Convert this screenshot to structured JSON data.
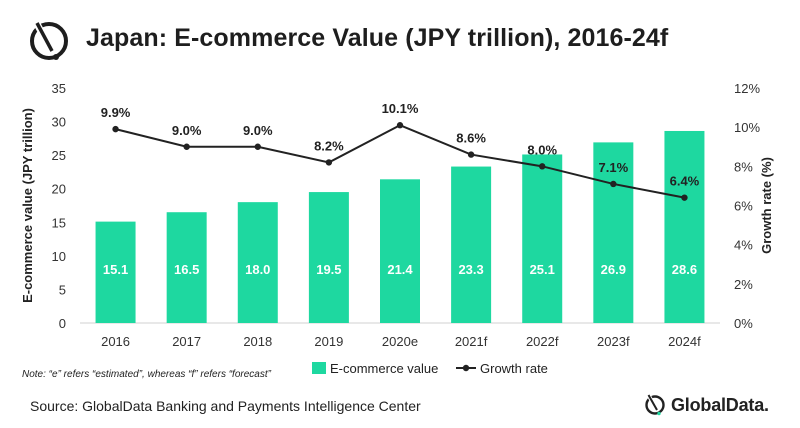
{
  "header": {
    "title": "Japan: E-commerce Value (JPY trillion), 2016-24f"
  },
  "footer": {
    "note": "Note: “e” refers “estimated”, whereas “f” refers “forecast”",
    "source": "Source: GlobalData Banking and Payments Intelligence Center",
    "brand": "GlobalData."
  },
  "colors": {
    "bar": "#1ed8a0",
    "line": "#222222",
    "brand_accent": "#1ed8a0"
  },
  "chart_data": {
    "type": "bar",
    "categories": [
      "2016",
      "2017",
      "2018",
      "2019",
      "2020e",
      "2021f",
      "2022f",
      "2023f",
      "2024f"
    ],
    "series": [
      {
        "name": "E-commerce value",
        "type": "bar",
        "axis": "left",
        "values": [
          15.1,
          16.5,
          18.0,
          19.5,
          21.4,
          23.3,
          25.1,
          26.9,
          28.6
        ],
        "labels": [
          "15.1",
          "16.5",
          "18.0",
          "19.5",
          "21.4",
          "23.3",
          "25.1",
          "26.9",
          "28.6"
        ]
      },
      {
        "name": "Growth rate",
        "type": "line",
        "axis": "right",
        "values": [
          9.9,
          9.0,
          9.0,
          8.2,
          10.1,
          8.6,
          8.0,
          7.1,
          6.4
        ],
        "labels": [
          "9.9%",
          "9.0%",
          "9.0%",
          "8.2%",
          "10.1%",
          "8.6%",
          "8.0%",
          "7.1%",
          "6.4%"
        ]
      }
    ],
    "ylabel": "E-commerce value (JPY trillion)",
    "y2label": "Growth rate (%)",
    "ylim": [
      0,
      35
    ],
    "y2lim": [
      0,
      12
    ],
    "yticks": [
      "0",
      "5",
      "10",
      "15",
      "20",
      "25",
      "30",
      "35"
    ],
    "y2ticks": [
      "0%",
      "2%",
      "4%",
      "6%",
      "8%",
      "10%",
      "12%"
    ],
    "grid": false,
    "legend": "bottom"
  }
}
